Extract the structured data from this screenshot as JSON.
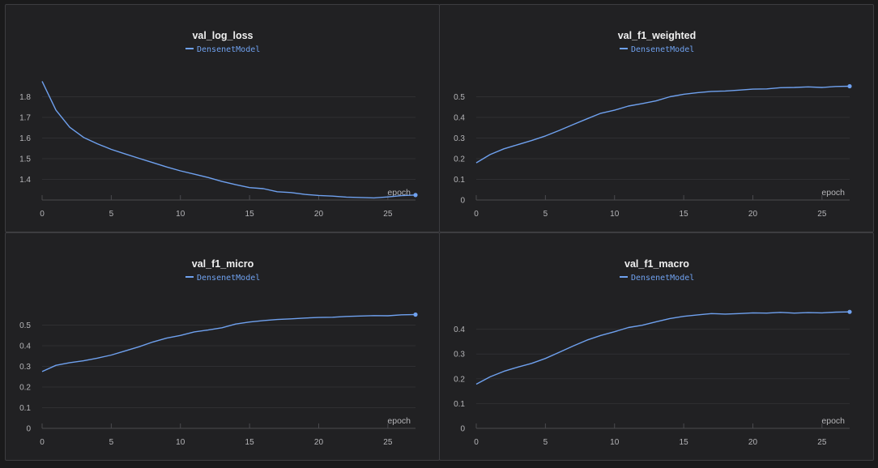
{
  "theme": {
    "line_color": "#6fa1ef",
    "grid_color": "#2f2f32",
    "axis_color": "#4a4a4e",
    "text_color": "#b5b5b8",
    "title_color": "#f0f0f0",
    "panel_bg": "#212123"
  },
  "chart_data": [
    {
      "type": "line",
      "title": "val_log_loss",
      "xlabel": "epoch",
      "ylabel": "",
      "legend": "top-center",
      "grid": true,
      "xlim": [
        0,
        27
      ],
      "ylim": [
        1.3,
        1.9
      ],
      "xticks": [
        "0",
        "5",
        "10",
        "15",
        "20",
        "25"
      ],
      "yticks": [
        "1.4",
        "1.5",
        "1.6",
        "1.7",
        "1.8"
      ],
      "series": [
        {
          "name": "DensenetModel",
          "x": [
            0,
            1,
            2,
            3,
            4,
            5,
            6,
            7,
            8,
            9,
            10,
            11,
            12,
            13,
            14,
            15,
            16,
            17,
            18,
            19,
            20,
            21,
            22,
            23,
            24,
            25,
            26,
            27
          ],
          "y": [
            1.875,
            1.735,
            1.652,
            1.603,
            1.572,
            1.545,
            1.523,
            1.502,
            1.481,
            1.46,
            1.441,
            1.425,
            1.409,
            1.39,
            1.374,
            1.36,
            1.355,
            1.34,
            1.336,
            1.327,
            1.322,
            1.319,
            1.314,
            1.312,
            1.31,
            1.315,
            1.321,
            1.324
          ]
        }
      ]
    },
    {
      "type": "line",
      "title": "val_f1_weighted",
      "xlabel": "epoch",
      "ylabel": "",
      "legend": "top-center",
      "grid": true,
      "xlim": [
        0,
        27
      ],
      "ylim": [
        0,
        0.6
      ],
      "xticks": [
        "0",
        "5",
        "10",
        "15",
        "20",
        "25"
      ],
      "yticks": [
        "0",
        "0.1",
        "0.2",
        "0.3",
        "0.4",
        "0.5"
      ],
      "series": [
        {
          "name": "DensenetModel",
          "x": [
            0,
            1,
            2,
            3,
            4,
            5,
            6,
            7,
            8,
            9,
            10,
            11,
            12,
            13,
            14,
            15,
            16,
            17,
            18,
            19,
            20,
            21,
            22,
            23,
            24,
            25,
            26,
            27
          ],
          "y": [
            0.18,
            0.22,
            0.248,
            0.268,
            0.288,
            0.31,
            0.337,
            0.365,
            0.393,
            0.42,
            0.435,
            0.455,
            0.467,
            0.48,
            0.5,
            0.512,
            0.52,
            0.526,
            0.528,
            0.532,
            0.537,
            0.538,
            0.544,
            0.545,
            0.548,
            0.545,
            0.55,
            0.551
          ]
        }
      ]
    },
    {
      "type": "line",
      "title": "val_f1_micro",
      "xlabel": "epoch",
      "ylabel": "",
      "legend": "top-center",
      "grid": true,
      "xlim": [
        0,
        27
      ],
      "ylim": [
        0,
        0.6
      ],
      "xticks": [
        "0",
        "5",
        "10",
        "15",
        "20",
        "25"
      ],
      "yticks": [
        "0",
        "0.1",
        "0.2",
        "0.3",
        "0.4",
        "0.5"
      ],
      "series": [
        {
          "name": "DensenetModel",
          "x": [
            0,
            1,
            2,
            3,
            4,
            5,
            6,
            7,
            8,
            9,
            10,
            11,
            12,
            13,
            14,
            15,
            16,
            17,
            18,
            19,
            20,
            21,
            22,
            23,
            24,
            25,
            26,
            27
          ],
          "y": [
            0.275,
            0.305,
            0.318,
            0.327,
            0.34,
            0.355,
            0.375,
            0.395,
            0.418,
            0.437,
            0.45,
            0.467,
            0.476,
            0.487,
            0.505,
            0.515,
            0.522,
            0.527,
            0.53,
            0.534,
            0.537,
            0.538,
            0.542,
            0.544,
            0.546,
            0.545,
            0.55,
            0.551
          ]
        }
      ]
    },
    {
      "type": "line",
      "title": "val_f1_macro",
      "xlabel": "epoch",
      "ylabel": "",
      "legend": "top-center",
      "grid": true,
      "xlim": [
        0,
        27
      ],
      "ylim": [
        0,
        0.5
      ],
      "xticks": [
        "0",
        "5",
        "10",
        "15",
        "20",
        "25"
      ],
      "yticks": [
        "0",
        "0.1",
        "0.2",
        "0.3",
        "0.4"
      ],
      "series": [
        {
          "name": "DensenetModel",
          "x": [
            0,
            1,
            2,
            3,
            4,
            5,
            6,
            7,
            8,
            9,
            10,
            11,
            12,
            13,
            14,
            15,
            16,
            17,
            18,
            19,
            20,
            21,
            22,
            23,
            24,
            25,
            26,
            27
          ],
          "y": [
            0.178,
            0.208,
            0.23,
            0.247,
            0.262,
            0.282,
            0.307,
            0.332,
            0.356,
            0.375,
            0.39,
            0.407,
            0.416,
            0.43,
            0.443,
            0.452,
            0.458,
            0.463,
            0.461,
            0.463,
            0.466,
            0.465,
            0.468,
            0.465,
            0.467,
            0.466,
            0.469,
            0.47
          ]
        }
      ]
    }
  ]
}
